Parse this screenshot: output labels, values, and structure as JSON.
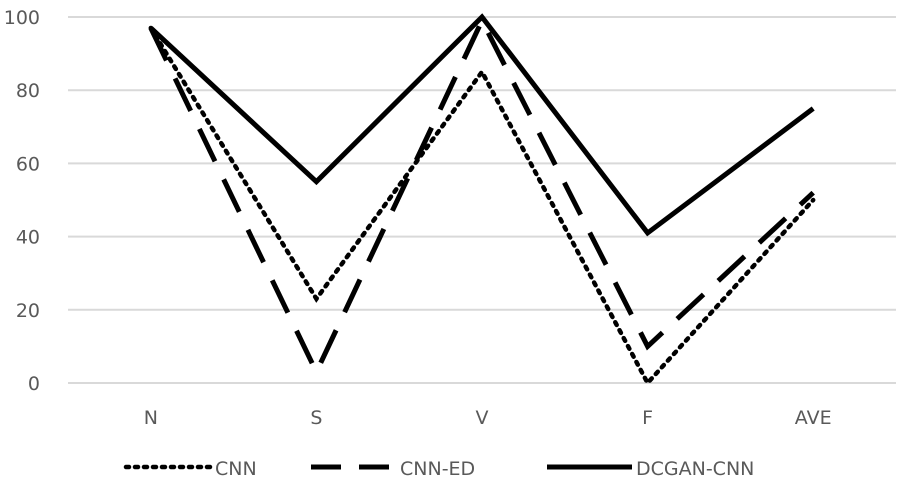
{
  "chart_data": {
    "type": "line",
    "categories": [
      "N",
      "S",
      "V",
      "F",
      "AVE"
    ],
    "series": [
      {
        "name": "CNN",
        "values": [
          97,
          23,
          85,
          0,
          50
        ],
        "color": "#000000",
        "line_style": "dotted"
      },
      {
        "name": "CNN-ED",
        "values": [
          97,
          3,
          99,
          10,
          52
        ],
        "color": "#000000",
        "line_style": "dashed"
      },
      {
        "name": "DCGAN-CNN",
        "values": [
          97,
          55,
          100,
          41,
          75
        ],
        "color": "#000000",
        "line_style": "solid"
      }
    ],
    "y_ticks": [
      "0",
      "20",
      "40",
      "60",
      "80",
      "100"
    ],
    "ylim": [
      0,
      100
    ],
    "grid": true,
    "grid_color": "#d9d9d9",
    "legend_position": "bottom",
    "title": "",
    "xlabel": "",
    "ylabel": ""
  }
}
